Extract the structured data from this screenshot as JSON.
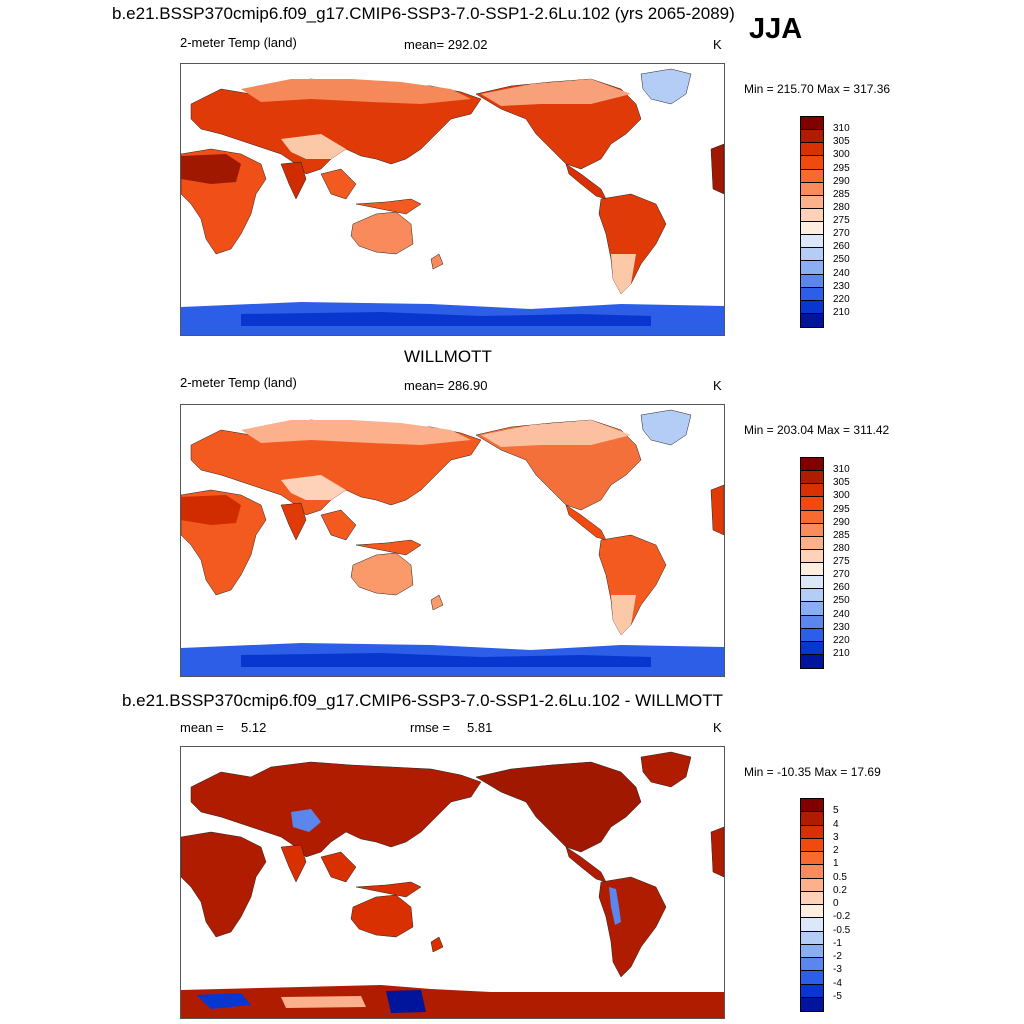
{
  "season": "JJA",
  "units": "K",
  "panels": [
    {
      "title": "b.e21.BSSP370cmip6.f09_g17.CMIP6-SSP3-7.0-SSP1-2.6Lu.102 (yrs 2065-2089)",
      "variable": "2-meter Temp (land)",
      "mean_text": "mean= 292.02",
      "units": "K",
      "range_text": "Min = 215.70 Max = 317.36",
      "colorbar_labels": [
        "310",
        "305",
        "300",
        "295",
        "290",
        "285",
        "280",
        "275",
        "270",
        "260",
        "250",
        "240",
        "230",
        "220",
        "210"
      ]
    },
    {
      "title": "WILLMOTT",
      "variable": "2-meter Temp (land)",
      "mean_text": "mean= 286.90",
      "units": "K",
      "range_text": "Min = 203.04 Max = 311.42",
      "colorbar_labels": [
        "310",
        "305",
        "300",
        "295",
        "290",
        "285",
        "280",
        "275",
        "270",
        "260",
        "250",
        "240",
        "230",
        "220",
        "210"
      ]
    },
    {
      "title": "b.e21.BSSP370cmip6.f09_g17.CMIP6-SSP3-7.0-SSP1-2.6Lu.102 - WILLMOTT",
      "mean_label": "mean =",
      "mean_value": "5.12",
      "rmse_label": "rmse =",
      "rmse_value": "5.81",
      "units": "K",
      "range_text": "Min = -10.35 Max =  17.69",
      "colorbar_labels": [
        "5",
        "4",
        "3",
        "2",
        "1",
        "0.5",
        "0.2",
        "0",
        "-0.2",
        "-0.5",
        "-1",
        "-2",
        "-3",
        "-4",
        "-5"
      ]
    }
  ],
  "colors": {
    "temp_scale": [
      "#800000",
      "#b01c00",
      "#d83000",
      "#f04a10",
      "#f86a30",
      "#fa8c5c",
      "#fcb08c",
      "#fdd2b8",
      "#fdeee0",
      "#dce8fa",
      "#b4cdf6",
      "#8aaef2",
      "#5a86ee",
      "#2c5ee8",
      "#0a36d0",
      "#00149c"
    ],
    "diff_scale": [
      "#800000",
      "#b01c00",
      "#d83000",
      "#f04a10",
      "#f86a30",
      "#fa8c5c",
      "#fcb08c",
      "#fdd2b8",
      "#fdeee0",
      "#dce8fa",
      "#b4cdf6",
      "#8aaef2",
      "#5a86ee",
      "#2c5ee8",
      "#0a36d0",
      "#00149c"
    ]
  }
}
